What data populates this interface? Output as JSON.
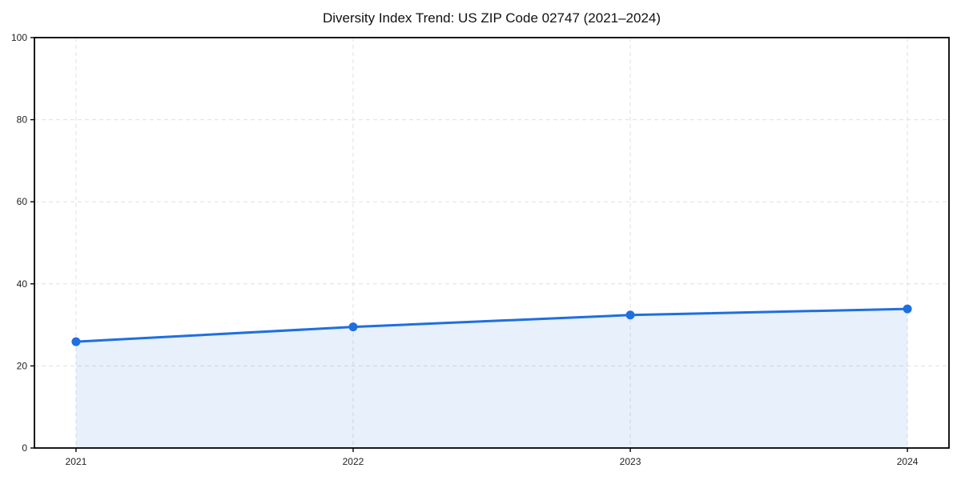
{
  "page": {
    "title": "Diversity Index Trend: US ZIP Code 02747 (2021–2024)"
  },
  "chart_data": {
    "type": "area",
    "title": "Diversity Index Trend: US ZIP Code 02747 (2021–2024)",
    "x": [
      2021,
      2022,
      2023,
      2024
    ],
    "xticklabels": [
      "2021",
      "2022",
      "2023",
      "2024"
    ],
    "series": [
      {
        "name": "Diversity Index",
        "values": [
          25.9,
          29.5,
          32.4,
          33.9
        ]
      }
    ],
    "xlabel": "",
    "ylabel": "",
    "ylim": [
      0,
      100
    ],
    "yticks": [
      0,
      20,
      40,
      60,
      80,
      100
    ],
    "grid": true,
    "grid_style": "dashed",
    "legend_position": "none",
    "colors": {
      "line": "#1e6fe0",
      "marker": "#1e6fe0",
      "fill": "#1e6fe0",
      "fill_opacity": 0.1,
      "gridline": "#e0e0e0",
      "spine": "#000000",
      "text": "#111111"
    }
  }
}
